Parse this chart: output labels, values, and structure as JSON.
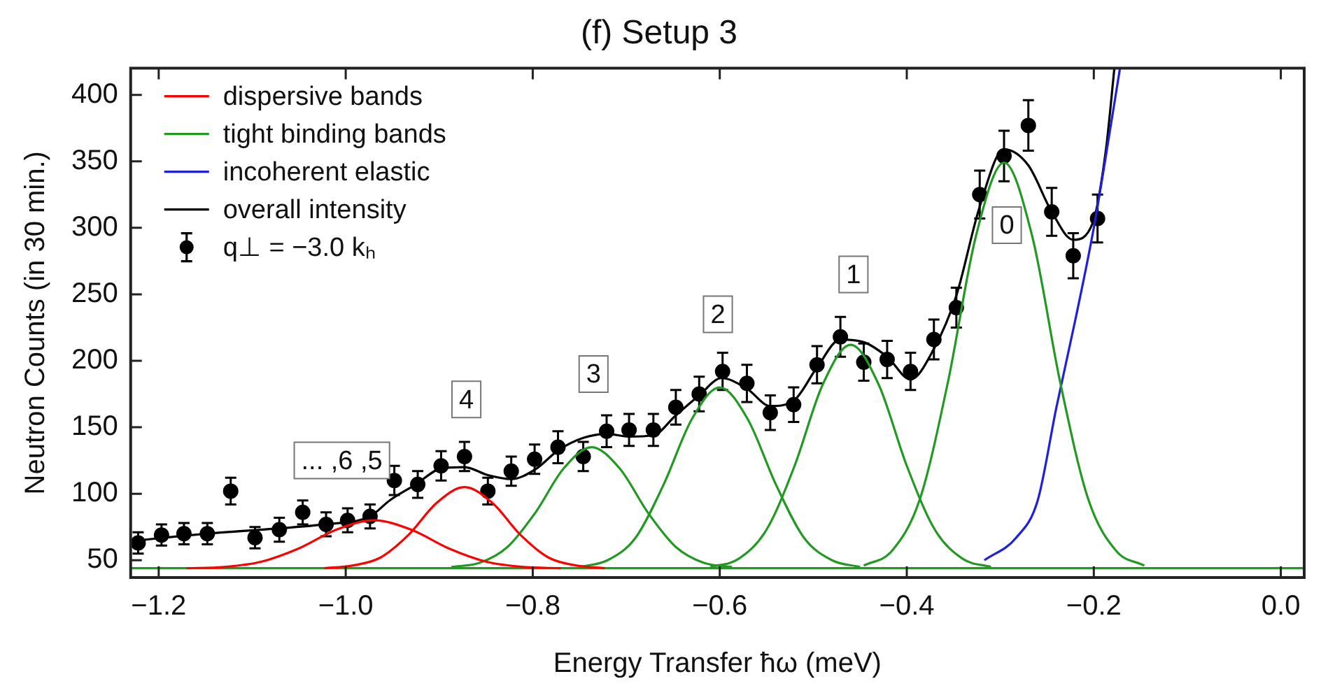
{
  "chart_data": {
    "type": "line",
    "title": "(f) Setup 3",
    "xlabel": "Energy Transfer ħω (meV)",
    "ylabel": "Neutron Counts (in 30 min.)",
    "xlim": [
      -1.23,
      0.025
    ],
    "ylim": [
      37,
      420
    ],
    "xticks": [
      {
        "value": -1.2,
        "label": "−1.2"
      },
      {
        "value": -1.0,
        "label": "−1.0"
      },
      {
        "value": -0.8,
        "label": "−0.8"
      },
      {
        "value": -0.6,
        "label": "−0.6"
      },
      {
        "value": -0.4,
        "label": "−0.4"
      },
      {
        "value": -0.2,
        "label": "−0.2"
      },
      {
        "value": 0,
        "label": "0.0"
      }
    ],
    "yticks": [
      50,
      100,
      150,
      200,
      250,
      300,
      350,
      400
    ],
    "grid": false,
    "legend": "top left",
    "series": [
      {
        "name": "dispersive bands",
        "type": "line",
        "color": "#ff0000",
        "marker": "none",
        "x": [
          -1.17,
          -1.13,
          -1.09,
          -1.05,
          -1.01,
          -0.97,
          -0.93,
          -0.89,
          -0.85,
          -0.81,
          -0.77
        ],
        "values": [
          44,
          45,
          49,
          59,
          73,
          80,
          73,
          59,
          49,
          45,
          44
        ]
      },
      {
        "type": "line",
        "color": "#ff0000",
        "marker": "none",
        "x": [
          -1.023,
          -0.993,
          -0.963,
          -0.933,
          -0.903,
          -0.873,
          -0.843,
          -0.813,
          -0.783,
          -0.753,
          -0.723
        ],
        "values": [
          44,
          46,
          52,
          69,
          93,
          105,
          93,
          69,
          52,
          46,
          44
        ]
      },
      {
        "name": "tight binding bands",
        "type": "line",
        "color": "#229922",
        "marker": "none",
        "x": [
          -0.887,
          -0.857,
          -0.827,
          -0.797,
          -0.767,
          -0.737,
          -0.707,
          -0.677,
          -0.647,
          -0.617,
          -0.587
        ],
        "values": [
          45,
          48,
          60,
          86,
          119,
          135,
          119,
          86,
          60,
          48,
          45
        ]
      },
      {
        "type": "line",
        "color": "#229922",
        "marker": "none",
        "x": [
          -1.23,
          0.025
        ],
        "values": [
          44,
          44
        ]
      },
      {
        "type": "line",
        "color": "#229922",
        "marker": "none",
        "x": [
          -0.75,
          -0.72,
          -0.69,
          -0.66,
          -0.63,
          -0.6,
          -0.57,
          -0.54,
          -0.51,
          -0.48,
          -0.45
        ],
        "values": [
          45,
          50,
          67,
          107,
          156,
          180,
          156,
          107,
          67,
          50,
          45
        ]
      },
      {
        "type": "line",
        "color": "#229922",
        "marker": "none",
        "x": [
          -0.61,
          -0.58,
          -0.55,
          -0.52,
          -0.49,
          -0.46,
          -0.43,
          -0.4,
          -0.37,
          -0.34,
          -0.31
        ],
        "values": [
          45,
          51,
          73,
          121,
          182,
          212,
          182,
          121,
          73,
          51,
          45
        ]
      },
      {
        "type": "line",
        "color": "#229922",
        "marker": "none",
        "x": [
          -0.446,
          -0.416,
          -0.386,
          -0.356,
          -0.326,
          -0.296,
          -0.266,
          -0.236,
          -0.206,
          -0.176,
          -0.146
        ],
        "values": [
          46,
          57,
          96,
          184,
          294,
          349,
          294,
          184,
          96,
          57,
          46
        ]
      },
      {
        "name": "incoherent elastic",
        "type": "line",
        "color": "#1f1fe0",
        "marker": "none",
        "x": [
          -0.317,
          -0.283,
          -0.26,
          -0.24,
          -0.22,
          -0.2,
          -0.18,
          -0.172
        ],
        "values": [
          50,
          67,
          95,
          165,
          230,
          300,
          385,
          420
        ]
      },
      {
        "name": "overall intensity",
        "type": "line",
        "color": "#000000",
        "marker": "none",
        "x": [
          -1.222,
          -1.148,
          -1.071,
          -1.023,
          -0.974,
          -0.953,
          -0.925,
          -0.898,
          -0.873,
          -0.848,
          -0.823,
          -0.798,
          -0.772,
          -0.746,
          -0.721,
          -0.697,
          -0.671,
          -0.647,
          -0.622,
          -0.598,
          -0.571,
          -0.546,
          -0.521,
          -0.496,
          -0.471,
          -0.446,
          -0.421,
          -0.396,
          -0.371,
          -0.347,
          -0.322,
          -0.296,
          -0.27,
          -0.245,
          -0.222,
          -0.201,
          -0.187,
          -0.178
        ],
        "values": [
          65,
          70,
          74,
          77,
          83,
          95,
          107,
          119,
          120,
          114,
          111,
          118,
          133,
          142,
          145,
          143,
          144,
          159,
          174,
          187,
          179,
          166,
          170,
          195,
          216,
          214,
          203,
          186,
          209,
          249,
          316,
          359,
          347,
          312,
          291,
          304,
          359,
          420
        ]
      },
      {
        "name": "q⊥ = −3.0 kₕ",
        "type": "scatter",
        "color": "#000000",
        "marker": "circle",
        "x": [
          -1.222,
          -1.197,
          -1.173,
          -1.148,
          -1.123,
          -1.097,
          -1.071,
          -1.046,
          -1.021,
          -0.998,
          -0.974,
          -0.948,
          -0.923,
          -0.898,
          -0.873,
          -0.848,
          -0.823,
          -0.798,
          -0.773,
          -0.746,
          -0.721,
          -0.697,
          -0.671,
          -0.647,
          -0.622,
          -0.597,
          -0.571,
          -0.546,
          -0.521,
          -0.496,
          -0.471,
          -0.446,
          -0.421,
          -0.396,
          -0.371,
          -0.347,
          -0.322,
          -0.296,
          -0.27,
          -0.245,
          -0.222,
          -0.196
        ],
        "values": [
          63,
          69,
          70,
          70,
          102,
          67,
          73,
          86,
          77,
          80,
          83,
          110,
          107,
          121,
          128,
          102,
          117,
          126,
          135,
          128,
          147,
          148,
          148,
          165,
          175,
          192,
          183,
          161,
          167,
          197,
          218,
          199,
          201,
          192,
          216,
          240,
          325,
          354,
          377,
          312,
          279,
          307
        ],
        "errors": [
          8,
          8,
          8,
          8,
          10,
          8,
          9,
          9,
          9,
          9,
          9,
          11,
          10,
          11,
          11,
          10,
          11,
          11,
          12,
          11,
          12,
          12,
          12,
          13,
          13,
          14,
          14,
          13,
          13,
          14,
          15,
          14,
          14,
          14,
          15,
          15,
          18,
          19,
          19,
          18,
          17,
          18
        ]
      }
    ],
    "annotations": [
      "... ,6 ,5",
      {
        "text": "4",
        "x": -0.871,
        "y": 171
      },
      {
        "text": "3",
        "x": -0.735,
        "y": 190
      },
      {
        "text": "2",
        "x": -0.602,
        "y": 235
      },
      {
        "text": "1",
        "x": -0.457,
        "y": 265
      },
      {
        "text": "0",
        "x": -0.293,
        "y": 302
      }
    ]
  }
}
